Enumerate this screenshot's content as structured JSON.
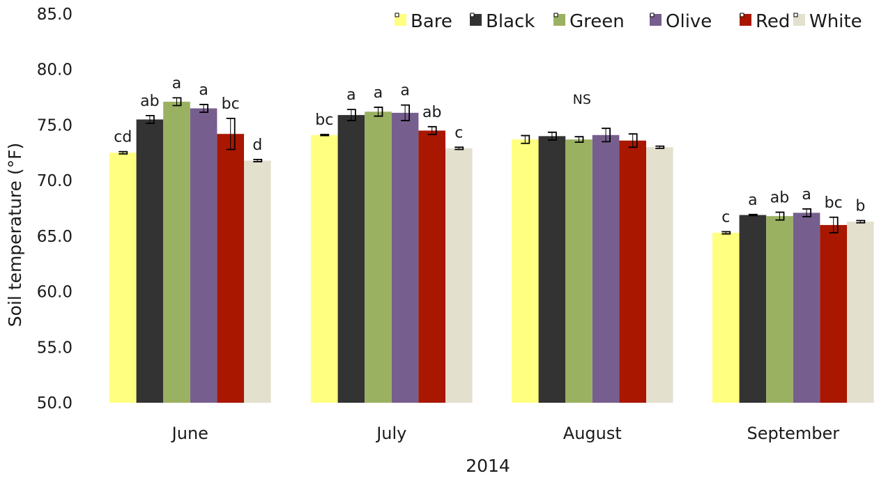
{
  "chart_data": {
    "type": "bar",
    "xlabel": "2014",
    "ylabel": "Soil temperature (°F)",
    "ylim": [
      50,
      85
    ],
    "yticks": [
      "50.0",
      "55.0",
      "60.0",
      "65.0",
      "70.0",
      "75.0",
      "80.0",
      "85.0"
    ],
    "grid": false,
    "legend_position": "top-right",
    "categories": [
      "June",
      "July",
      "August",
      "September"
    ],
    "series": [
      {
        "name": "Bare",
        "color": "#FFFF80",
        "values": [
          72.5,
          74.1,
          73.7,
          65.3
        ],
        "errors": [
          0.1,
          0.05,
          0.35,
          0.1
        ]
      },
      {
        "name": "Black",
        "color": "#333333",
        "values": [
          75.5,
          75.9,
          74.0,
          66.9
        ],
        "errors": [
          0.35,
          0.5,
          0.35,
          0.05
        ]
      },
      {
        "name": "Green",
        "color": "#9BB162",
        "values": [
          77.1,
          76.2,
          73.7,
          66.8
        ],
        "errors": [
          0.35,
          0.4,
          0.25,
          0.35
        ]
      },
      {
        "name": "Olive",
        "color": "#765F8E",
        "values": [
          76.5,
          76.1,
          74.1,
          67.1
        ],
        "errors": [
          0.35,
          0.7,
          0.6,
          0.35
        ]
      },
      {
        "name": "Red",
        "color": "#A91700",
        "values": [
          74.2,
          74.5,
          73.6,
          66.0
        ],
        "errors": [
          1.4,
          0.35,
          0.6,
          0.7
        ]
      },
      {
        "name": "White",
        "color": "#E3E0CE",
        "values": [
          71.8,
          72.9,
          73.0,
          66.3
        ],
        "errors": [
          0.1,
          0.1,
          0.1,
          0.1
        ]
      }
    ],
    "significance_labels": [
      [
        "cd",
        "ab",
        "a",
        "a",
        "bc",
        "d"
      ],
      [
        "bc",
        "a",
        "a",
        "a",
        "ab",
        "c"
      ],
      [
        "",
        "",
        "",
        "",
        "",
        ""
      ],
      [
        "c",
        "a",
        "ab",
        "a",
        "bc",
        "b"
      ]
    ],
    "group_annotations": [
      "",
      "",
      "NS",
      ""
    ]
  }
}
